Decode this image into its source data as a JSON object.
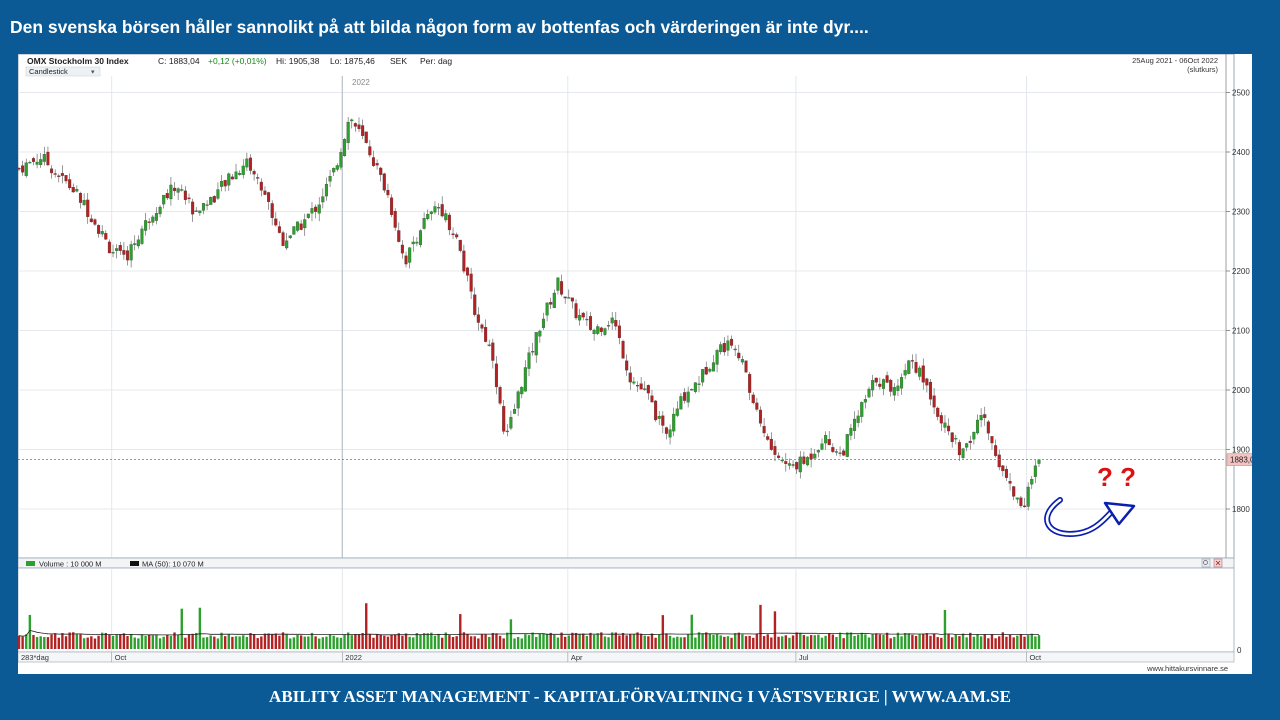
{
  "header": {
    "title": "Den svenska börsen håller sannolikt på att bilda någon form av bottenfas och värderingen är inte dyr...."
  },
  "footer": {
    "text": "ABILITY ASSET MANAGEMENT -  KAPITALFÖRVALTNING I VÄSTSVERIGE   |   WWW.AAM.SE"
  },
  "chart_info": {
    "index_name": "OMX Stockholm 30 Index",
    "close": "C: 1883,04",
    "change": "+0,12 (+0,01%)",
    "hi": "Hi: 1905,38",
    "lo": "Lo: 1875,46",
    "currency": "SEK",
    "period": "Per: dag",
    "chart_type_selector": "Candlestick",
    "date_range": "25Aug 2021 - 06Oct 2022",
    "close_type": "(slutkurs)",
    "year_marker": "2022",
    "current_price_label": "1883,0",
    "volume_legend": "Volume : 10 000 M",
    "ma_legend": "MA (50): 10 070 M",
    "volume_zero_label": "0",
    "days_label": "283*dag",
    "source": "www.hittakursvinnare.se",
    "annotation": "? ?"
  },
  "chart_data": {
    "type": "candlestick",
    "title": "OMX Stockholm 30 Index",
    "ylim": [
      1720,
      2520
    ],
    "y_ticks": [
      1800,
      1900,
      2000,
      2100,
      2200,
      2300,
      2400,
      2500
    ],
    "x_ticks": [
      "Oct",
      "2022",
      "Apr",
      "Jul",
      "Oct"
    ],
    "grid": true,
    "series": [
      {
        "name": "Volume",
        "type": "bar"
      },
      {
        "name": "MA (50)",
        "type": "line"
      }
    ],
    "close_path": [
      {
        "date": "2021-08-25",
        "close": 2372
      },
      {
        "date": "2021-09-03",
        "close": 2392
      },
      {
        "date": "2021-09-10",
        "close": 2360
      },
      {
        "date": "2021-09-17",
        "close": 2330
      },
      {
        "date": "2021-09-24",
        "close": 2285
      },
      {
        "date": "2021-09-30",
        "close": 2240
      },
      {
        "date": "2021-10-06",
        "close": 2218
      },
      {
        "date": "2021-10-13",
        "close": 2270
      },
      {
        "date": "2021-10-20",
        "close": 2315
      },
      {
        "date": "2021-10-27",
        "close": 2345
      },
      {
        "date": "2021-11-03",
        "close": 2300
      },
      {
        "date": "2021-11-10",
        "close": 2322
      },
      {
        "date": "2021-11-17",
        "close": 2355
      },
      {
        "date": "2021-11-24",
        "close": 2385
      },
      {
        "date": "2021-12-01",
        "close": 2330
      },
      {
        "date": "2021-12-08",
        "close": 2250
      },
      {
        "date": "2021-12-15",
        "close": 2275
      },
      {
        "date": "2021-12-22",
        "close": 2310
      },
      {
        "date": "2021-12-29",
        "close": 2370
      },
      {
        "date": "2022-01-04",
        "close": 2460
      },
      {
        "date": "2022-01-12",
        "close": 2400
      },
      {
        "date": "2022-01-19",
        "close": 2330
      },
      {
        "date": "2022-01-26",
        "close": 2215
      },
      {
        "date": "2022-02-02",
        "close": 2280
      },
      {
        "date": "2022-02-09",
        "close": 2310
      },
      {
        "date": "2022-02-16",
        "close": 2250
      },
      {
        "date": "2022-02-23",
        "close": 2130
      },
      {
        "date": "2022-03-02",
        "close": 2060
      },
      {
        "date": "2022-03-07",
        "close": 1910
      },
      {
        "date": "2022-03-14",
        "close": 2020
      },
      {
        "date": "2022-03-21",
        "close": 2110
      },
      {
        "date": "2022-03-28",
        "close": 2180
      },
      {
        "date": "2022-04-04",
        "close": 2130
      },
      {
        "date": "2022-04-11",
        "close": 2100
      },
      {
        "date": "2022-04-19",
        "close": 2120
      },
      {
        "date": "2022-04-26",
        "close": 2020
      },
      {
        "date": "2022-05-03",
        "close": 1990
      },
      {
        "date": "2022-05-10",
        "close": 1920
      },
      {
        "date": "2022-05-17",
        "close": 1990
      },
      {
        "date": "2022-05-24",
        "close": 2020
      },
      {
        "date": "2022-05-31",
        "close": 2070
      },
      {
        "date": "2022-06-07",
        "close": 2080
      },
      {
        "date": "2022-06-14",
        "close": 1980
      },
      {
        "date": "2022-06-21",
        "close": 1900
      },
      {
        "date": "2022-06-28",
        "close": 1870
      },
      {
        "date": "2022-07-05",
        "close": 1880
      },
      {
        "date": "2022-07-12",
        "close": 1920
      },
      {
        "date": "2022-07-19",
        "close": 1890
      },
      {
        "date": "2022-07-26",
        "close": 1960
      },
      {
        "date": "2022-08-02",
        "close": 2020
      },
      {
        "date": "2022-08-09",
        "close": 2000
      },
      {
        "date": "2022-08-16",
        "close": 2055
      },
      {
        "date": "2022-08-23",
        "close": 2000
      },
      {
        "date": "2022-08-30",
        "close": 1930
      },
      {
        "date": "2022-09-06",
        "close": 1890
      },
      {
        "date": "2022-09-13",
        "close": 1960
      },
      {
        "date": "2022-09-20",
        "close": 1880
      },
      {
        "date": "2022-09-27",
        "close": 1815
      },
      {
        "date": "2022-09-30",
        "close": 1810
      },
      {
        "date": "2022-10-06",
        "close": 1883
      }
    ]
  },
  "colors": {
    "frame": "#0b5a96",
    "bull": "#2ca02c",
    "bear": "#b22222",
    "annotation_arrow": "#0a1fb0",
    "annotation_text": "#dd1010",
    "current_price_box": "#f5c2c2"
  }
}
